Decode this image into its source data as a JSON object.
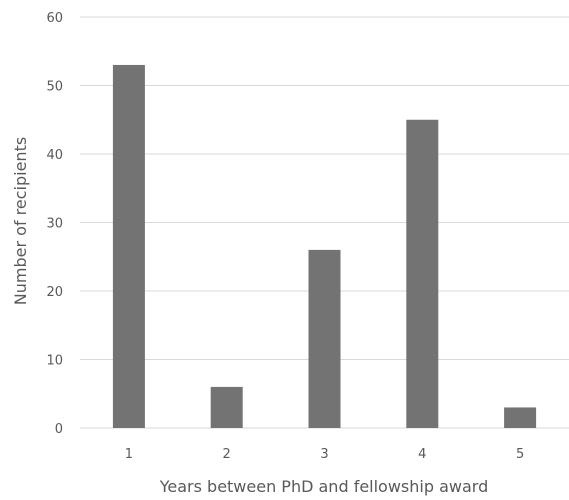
{
  "chart_data": {
    "type": "bar",
    "categories": [
      "1",
      "2",
      "3",
      "4",
      "5"
    ],
    "values": [
      53,
      6,
      26,
      45,
      3
    ],
    "title": "",
    "xlabel": "Years between PhD and fellowship award",
    "ylabel": "Number of recipients",
    "ylim": [
      0,
      60
    ],
    "yticks": [
      0,
      10,
      20,
      30,
      40,
      50,
      60
    ],
    "grid": true,
    "legend": "none",
    "bar_color": "#737373"
  }
}
